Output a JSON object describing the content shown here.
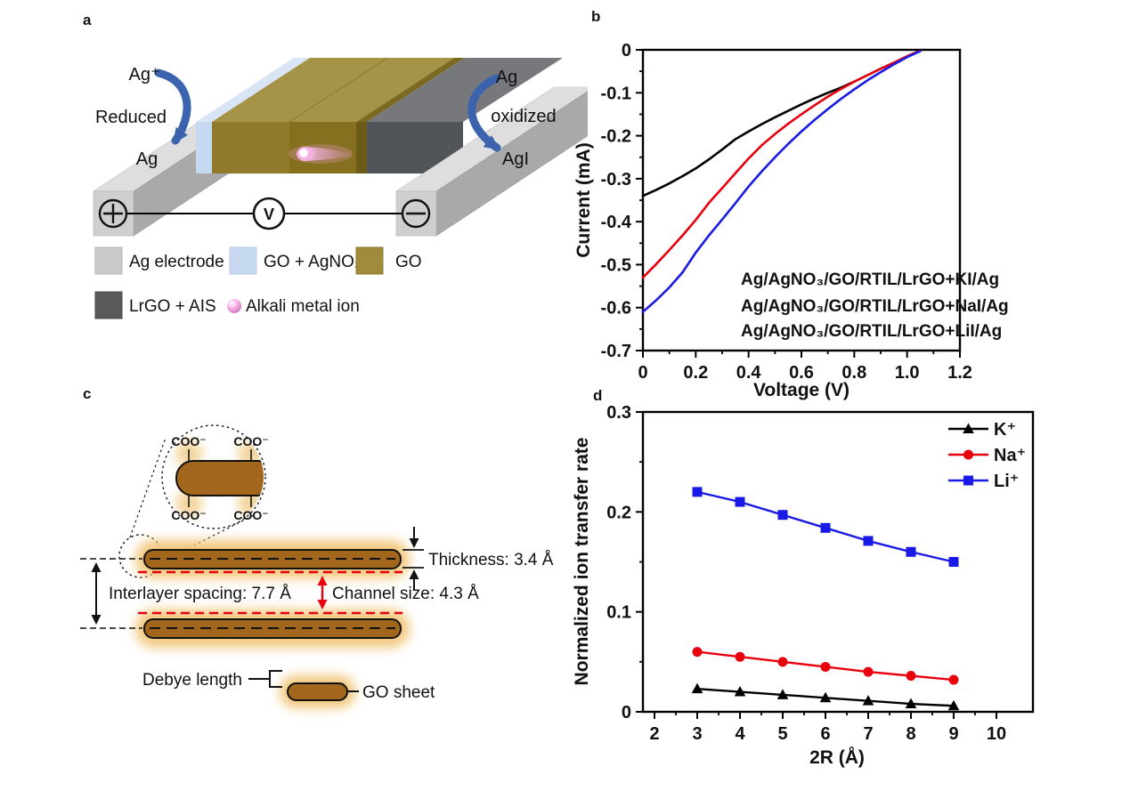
{
  "figure": {
    "background": "#ffffff"
  },
  "panel_a": {
    "label": "a",
    "left_reaction": {
      "ion": "Ag⁺",
      "process": "Reduced",
      "product": "Ag"
    },
    "right_reaction": {
      "metal": "Ag",
      "process": "oxidized",
      "product": "AgI"
    },
    "voltmeter_label": "V",
    "legend": [
      {
        "label": "Ag electrode",
        "swatch": "#cbcbcb"
      },
      {
        "label": "GO + AgNO₃",
        "swatch": "#c7d9f0"
      },
      {
        "label": "GO",
        "swatch": "#a08b3c"
      },
      {
        "label": "LrGO + AIS",
        "swatch": "#595959"
      },
      {
        "label": "Alkali metal ion",
        "swatch": "pink-sphere"
      }
    ],
    "colors": {
      "electrode": "#cbcbcb",
      "go_agno3": "#c7d9f0",
      "go": "#a08b3c",
      "lrgo_ais": "#595959",
      "arrow_blue": "#3c63ae",
      "ion_pink": "#f2a0dc"
    }
  },
  "panel_c": {
    "label": "c",
    "coo_label": "COO⁻",
    "thickness_label": "Thickness: 3.4 Å",
    "interlayer_label": "Interlayer spacing: 7.7 Å",
    "channel_label": "Channel size: 4.3 Å",
    "debye_label": "Debye length",
    "go_sheet_label": "GO sheet",
    "colors": {
      "sheet": "#a2661c",
      "glow": "#f2c87e",
      "dimension_red": "#e8000d"
    }
  },
  "chart_data": [
    {
      "panel": "b",
      "type": "line",
      "xlabel": "Voltage (V)",
      "ylabel": "Current (mA)",
      "xlim": [
        0,
        1.2
      ],
      "ylim": [
        -0.7,
        0
      ],
      "grid": false,
      "legend_position": "inside bottom-right, colored text lines",
      "xticks": {
        "values": [
          0,
          0.2,
          0.4,
          0.6,
          0.8,
          1.0,
          1.2
        ],
        "labels": [
          "0",
          "0.2",
          "0.4",
          "0.6",
          "0.8",
          "1.0",
          "1.2"
        ],
        "minor": [
          0.1,
          0.3,
          0.5,
          0.7,
          0.9,
          1.1
        ]
      },
      "yticks": {
        "values": [
          0,
          -0.1,
          -0.2,
          -0.3,
          -0.4,
          -0.5,
          -0.6,
          -0.7
        ],
        "labels": [
          "0",
          "-0.1",
          "-0.2",
          "-0.3",
          "-0.4",
          "-0.5",
          "-0.6",
          "-0.7"
        ],
        "minor": [
          -0.05,
          -0.15,
          -0.25,
          -0.35,
          -0.45,
          -0.55,
          -0.65
        ]
      },
      "series": [
        {
          "name": "Ag/AgNO₃/GO/RTIL/LrGO+KI/Ag",
          "color": "#000000",
          "marker": null,
          "x": [
            0,
            0.05,
            0.1,
            0.15,
            0.2,
            0.25,
            0.3,
            0.35,
            0.4,
            0.45,
            0.5,
            0.55,
            0.6,
            0.65,
            0.7,
            0.75,
            0.8,
            0.85,
            0.9,
            0.95,
            1.0,
            1.05
          ],
          "y": [
            -0.34,
            -0.326,
            -0.311,
            -0.294,
            -0.276,
            -0.255,
            -0.232,
            -0.208,
            -0.19,
            -0.173,
            -0.157,
            -0.142,
            -0.127,
            -0.113,
            -0.1,
            -0.088,
            -0.074,
            -0.059,
            -0.044,
            -0.03,
            -0.015,
            -0.002
          ]
        },
        {
          "name": "Ag/AgNO₃/GO/RTIL/LrGO+NaI/Ag",
          "color": "#e8000d",
          "marker": null,
          "x": [
            0,
            0.05,
            0.1,
            0.15,
            0.2,
            0.25,
            0.3,
            0.35,
            0.4,
            0.45,
            0.5,
            0.55,
            0.6,
            0.65,
            0.7,
            0.75,
            0.8,
            0.85,
            0.9,
            0.95,
            1.0,
            1.05
          ],
          "y": [
            -0.53,
            -0.499,
            -0.466,
            -0.432,
            -0.396,
            -0.356,
            -0.322,
            -0.287,
            -0.253,
            -0.222,
            -0.196,
            -0.172,
            -0.15,
            -0.129,
            -0.109,
            -0.091,
            -0.074,
            -0.059,
            -0.044,
            -0.03,
            -0.015,
            -0.002
          ]
        },
        {
          "name": "Ag/AgNO₃/GO/RTIL/LrGO+LiI/Ag",
          "color": "#1a1ae6",
          "marker": null,
          "x": [
            0,
            0.05,
            0.1,
            0.15,
            0.2,
            0.25,
            0.3,
            0.35,
            0.4,
            0.45,
            0.5,
            0.55,
            0.6,
            0.65,
            0.7,
            0.75,
            0.8,
            0.85,
            0.9,
            0.95,
            1.0,
            1.05
          ],
          "y": [
            -0.61,
            -0.583,
            -0.553,
            -0.518,
            -0.472,
            -0.432,
            -0.395,
            -0.357,
            -0.318,
            -0.283,
            -0.25,
            -0.219,
            -0.19,
            -0.163,
            -0.138,
            -0.114,
            -0.092,
            -0.071,
            -0.052,
            -0.034,
            -0.017,
            -0.003
          ]
        }
      ]
    },
    {
      "panel": "d",
      "type": "line",
      "xlabel": "2R (Å)",
      "ylabel": "Normalized ion transfer rate",
      "xlim": [
        2,
        10
      ],
      "ylim": [
        0,
        0.3
      ],
      "grid": false,
      "legend_position": "inside top-right, line+marker entries",
      "xticks": {
        "values": [
          2,
          3,
          4,
          5,
          6,
          7,
          8,
          9,
          10
        ],
        "labels": [
          "2",
          "3",
          "4",
          "5",
          "6",
          "7",
          "8",
          "9",
          "10"
        ],
        "minor": [
          2.5,
          3.5,
          4.5,
          5.5,
          6.5,
          7.5,
          8.5,
          9.5
        ]
      },
      "yticks": {
        "values": [
          0,
          0.1,
          0.2,
          0.3
        ],
        "labels": [
          "0",
          "0.1",
          "0.2",
          "0.3"
        ],
        "minor": [
          0.05,
          0.15,
          0.25
        ]
      },
      "series": [
        {
          "name": "K⁺",
          "color": "#000000",
          "marker": "triangle",
          "x": [
            3,
            4,
            5,
            6,
            7,
            8,
            9
          ],
          "y": [
            0.023,
            0.02,
            0.017,
            0.014,
            0.011,
            0.008,
            0.006
          ]
        },
        {
          "name": "Na⁺",
          "color": "#e8000d",
          "marker": "circle",
          "x": [
            3,
            4,
            5,
            6,
            7,
            8,
            9
          ],
          "y": [
            0.06,
            0.055,
            0.05,
            0.045,
            0.04,
            0.036,
            0.032
          ]
        },
        {
          "name": "Li⁺",
          "color": "#1a1ae6",
          "marker": "square",
          "x": [
            3,
            4,
            5,
            6,
            7,
            8,
            9
          ],
          "y": [
            0.22,
            0.21,
            0.197,
            0.184,
            0.171,
            0.16,
            0.15
          ]
        }
      ]
    }
  ]
}
